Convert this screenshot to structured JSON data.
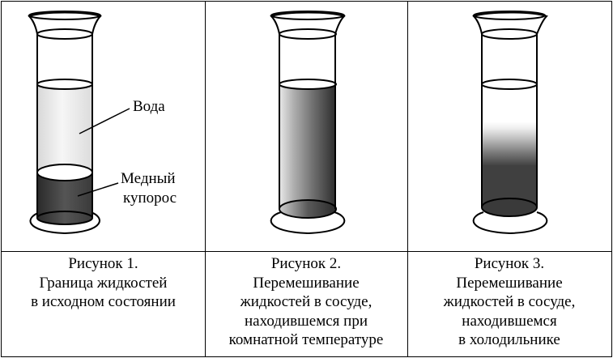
{
  "figure1": {
    "labels": {
      "water": "Вода",
      "copper_sulfate_line1": "Медный",
      "copper_sulfate_line2": "купорос"
    },
    "caption": [
      "Рисунок 1.",
      "Граница жидкостей",
      "в исходном состоянии"
    ]
  },
  "figure2": {
    "caption": [
      "Рисунок 2.",
      "Перемешивание",
      "жидкостей в сосуде,",
      "находившемся при",
      "комнатной температуре"
    ]
  },
  "figure3": {
    "caption": [
      "Рисунок 3.",
      "Перемешивание",
      "жидкостей в сосуде,",
      "находившемся",
      "в холодильнике"
    ]
  },
  "colors": {
    "copper_sulfate": "#404040",
    "water": "#e8e8e8",
    "outline": "#000000"
  }
}
